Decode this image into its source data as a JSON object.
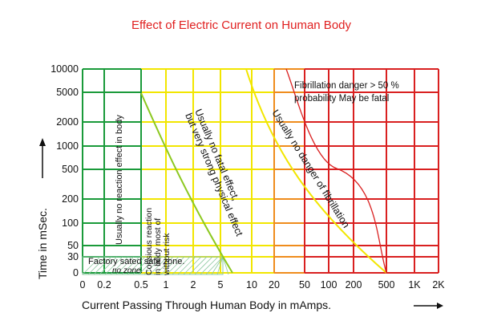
{
  "chart_data": {
    "type": "area",
    "title": "Effect of Electric Current on Human Body",
    "xlabel": "Current Passing Through Human Body in mAmps.",
    "ylabel": "Time in mSec.",
    "x_ticks": [
      "0",
      "0.2",
      "0.5",
      "1",
      "2",
      "5",
      "10",
      "20",
      "50",
      "100",
      "200",
      "500",
      "1K",
      "2K"
    ],
    "y_ticks": [
      "0",
      "30",
      "50",
      "100",
      "200",
      "500",
      "1000",
      "2000",
      "5000",
      "10000"
    ],
    "grid": true,
    "zones": [
      {
        "color": "#1a9a3a",
        "x_range": [
          "0",
          "0.5"
        ],
        "label": "Usually no reaction effect in body"
      },
      {
        "color": "#f2e600",
        "x_range": [
          "0.5",
          "10"
        ],
        "label_a": "Consious reaction in body most of without risk",
        "label_b": "Usually no fatal effect, but very strong physical effect"
      },
      {
        "color": "#f2e600",
        "x_range": [
          "10",
          "20"
        ],
        "label": "Usually no danger of fibrillation"
      },
      {
        "color": "#ef8c1c",
        "x_range": [
          "20",
          "50"
        ]
      },
      {
        "color": "#d92020",
        "x_range": [
          "50",
          "2K"
        ],
        "label": "Fibrillation danger > 50 % probability May be fatal"
      }
    ],
    "safe_zone": {
      "y_range": [
        "0",
        "30"
      ],
      "label": "Factory sated safe zone. no zone."
    },
    "curves": [
      {
        "color": "#8cc820",
        "points": [
          [
            "0.5",
            "5000"
          ],
          [
            "1",
            "1000"
          ],
          [
            "2",
            "200"
          ],
          [
            "5",
            "50"
          ],
          [
            "10",
            "0"
          ]
        ]
      },
      {
        "color": "#f2e600",
        "points": [
          [
            "10",
            "10000"
          ],
          [
            "20",
            "1000"
          ],
          [
            "50",
            "200"
          ],
          [
            "100",
            "100"
          ],
          [
            "500",
            "0"
          ]
        ]
      },
      {
        "color": "#d92020",
        "points": [
          [
            "20",
            "10000"
          ],
          [
            "50",
            "2000"
          ],
          [
            "100",
            "500"
          ],
          [
            "200",
            "500"
          ],
          [
            "500",
            "0"
          ]
        ]
      }
    ]
  },
  "labels": {
    "zone_green": "Usually no reaction effect in body",
    "zone_green_yellow_a": "Consious reaction",
    "zone_green_yellow_b": "in body most of",
    "zone_green_yellow_c": "without risk",
    "zone_yellow_a": "Usually no fatal effect,",
    "zone_yellow_b": "but very strong physical effect",
    "zone_orange": "Usually no danger of fibrillation",
    "zone_red_a": "Fibrillation danger > 50 %",
    "zone_red_b": "probability May be fatal",
    "safe_a": "Factory sated safe zone.",
    "safe_b": "no zone."
  }
}
